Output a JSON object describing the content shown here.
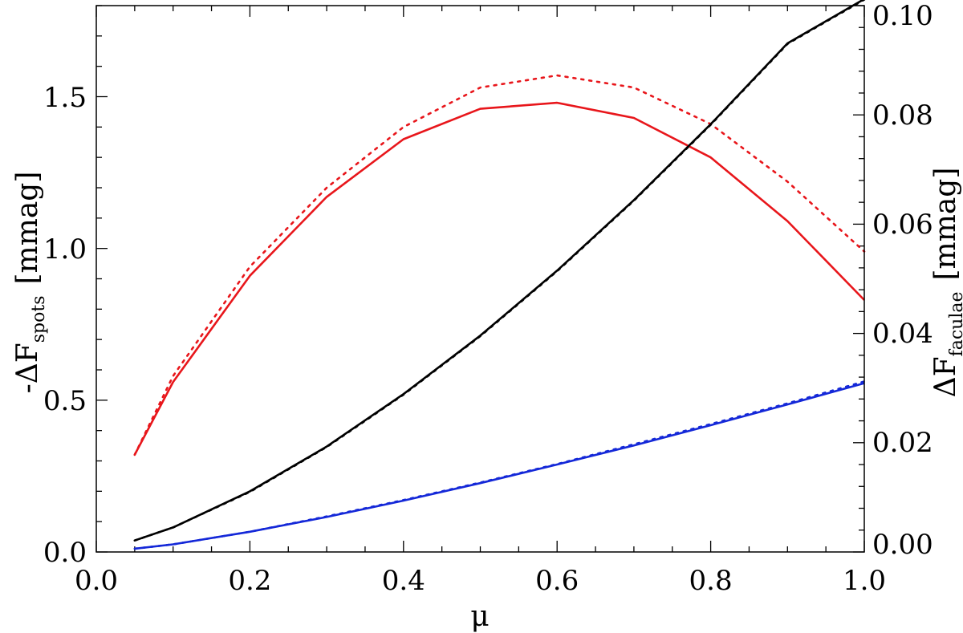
{
  "chart_data": {
    "type": "line",
    "xlabel": "μ",
    "ylabel_left": {
      "main": "-ΔF",
      "sub": "spots",
      "unit": "[mmag]"
    },
    "ylabel_right": {
      "main": "ΔF",
      "sub": "faculae",
      "unit": "[mmag]"
    },
    "xlim": [
      0.0,
      1.0
    ],
    "ylim_left": [
      0.0,
      1.8
    ],
    "ylim_right": [
      0.0,
      0.1
    ],
    "x_ticks": [
      "0.0",
      "0.2",
      "0.4",
      "0.6",
      "0.8",
      "1.0"
    ],
    "y_left_ticks": [
      "0.0",
      "0.5",
      "1.0",
      "1.5"
    ],
    "y_right_ticks": [
      "0.00",
      "0.02",
      "0.04",
      "0.06",
      "0.08",
      "0.10"
    ],
    "grid": false,
    "series": [
      {
        "axis": "left",
        "color": "#e8161b",
        "style": "solid",
        "x": [
          0.05,
          0.1,
          0.2,
          0.3,
          0.4,
          0.5,
          0.6,
          0.7,
          0.8,
          0.9,
          1.0
        ],
        "values": [
          0.32,
          0.56,
          0.91,
          1.17,
          1.36,
          1.46,
          1.48,
          1.43,
          1.3,
          1.09,
          0.83
        ]
      },
      {
        "axis": "left",
        "color": "#e8161b",
        "style": "dotted",
        "x": [
          0.05,
          0.1,
          0.2,
          0.3,
          0.4,
          0.5,
          0.6,
          0.7,
          0.8,
          0.9,
          1.0
        ],
        "values": [
          0.32,
          0.58,
          0.94,
          1.2,
          1.4,
          1.53,
          1.57,
          1.53,
          1.41,
          1.22,
          0.99
        ]
      },
      {
        "axis": "right",
        "color": "#000000",
        "style": "solid",
        "x": [
          0.05,
          0.1,
          0.2,
          0.3,
          0.4,
          0.5,
          0.6,
          0.7,
          0.8,
          0.9,
          1.0
        ],
        "values": [
          0.0021,
          0.0045,
          0.0111,
          0.0193,
          0.0289,
          0.0396,
          0.0515,
          0.0644,
          0.0783,
          0.0931,
          0.1012
        ]
      },
      {
        "axis": "right",
        "color": "#000000",
        "style": "dotted",
        "x": [
          0.05,
          0.1,
          0.2,
          0.3,
          0.4,
          0.5,
          0.6,
          0.7,
          0.8,
          0.9,
          1.0
        ],
        "values": [
          0.0021,
          0.0045,
          0.011,
          0.0192,
          0.0288,
          0.0395,
          0.0514,
          0.0643,
          0.0782,
          0.093,
          0.1011
        ]
      },
      {
        "axis": "right",
        "color": "#1428d8",
        "style": "solid",
        "x": [
          0.05,
          0.1,
          0.2,
          0.3,
          0.4,
          0.5,
          0.6,
          0.7,
          0.8,
          0.9,
          1.0
        ],
        "values": [
          0.0006,
          0.0014,
          0.0037,
          0.0064,
          0.0094,
          0.0126,
          0.016,
          0.0195,
          0.0232,
          0.027,
          0.0309
        ]
      },
      {
        "axis": "right",
        "color": "#1428d8",
        "style": "dotted",
        "x": [
          0.05,
          0.1,
          0.2,
          0.3,
          0.4,
          0.5,
          0.6,
          0.7,
          0.8,
          0.9,
          1.0
        ],
        "values": [
          0.0006,
          0.0014,
          0.0037,
          0.0065,
          0.0095,
          0.0127,
          0.0161,
          0.0197,
          0.0234,
          0.0272,
          0.0312
        ]
      }
    ]
  }
}
